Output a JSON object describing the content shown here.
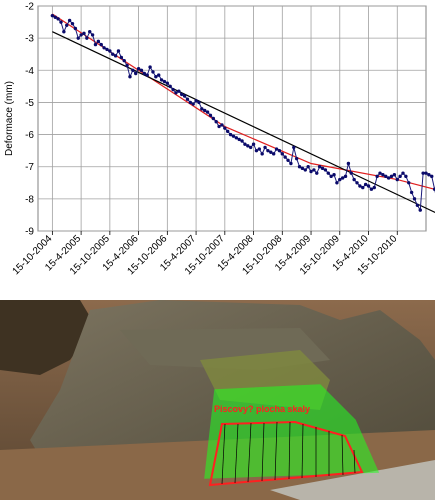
{
  "chart_data": {
    "type": "line",
    "title": "",
    "ylabel": "Deformace (mm)",
    "xlabel": "",
    "ylim": [
      -9,
      -2
    ],
    "y_ticks": [
      -2,
      -3,
      -4,
      -5,
      -6,
      -7,
      -8,
      -9
    ],
    "x_ticks": [
      "15-10-2004",
      "15-4-2005",
      "15-10-2005",
      "15-4-2006",
      "15-10-2006",
      "15-4-2007",
      "15-10-2007",
      "15-4-2008",
      "15-10-2008",
      "15-4-2009",
      "15-10-2009",
      "15-4-2010",
      "15-10-2010"
    ],
    "grid": true,
    "legend": "none",
    "series": [
      {
        "x": [
          0,
          0.1,
          0.2,
          0.3,
          0.4,
          0.5,
          0.6,
          0.7,
          0.8,
          0.9,
          1.0,
          1.1,
          1.2,
          1.3,
          1.4,
          1.5,
          1.6,
          1.7,
          1.8,
          1.9,
          2.0,
          2.1,
          2.2,
          2.3,
          2.4,
          2.5,
          2.6,
          2.7,
          2.8,
          2.9,
          3.0,
          3.1,
          3.2,
          3.3,
          3.4,
          3.5,
          3.6,
          3.7,
          3.8,
          3.9,
          4.0,
          4.1,
          4.2,
          4.3,
          4.4,
          4.5,
          4.6,
          4.7,
          4.8,
          4.9,
          5.0,
          5.1,
          5.2,
          5.3,
          5.4,
          5.5,
          5.6,
          5.7,
          5.8,
          5.9,
          6.0,
          6.1,
          6.2,
          6.3,
          6.4,
          6.5,
          6.6,
          6.7,
          6.8,
          6.9,
          7.0,
          7.1,
          7.2,
          7.3,
          7.4,
          7.5,
          7.6,
          7.7,
          7.8,
          7.9,
          8.0,
          8.1,
          8.2,
          8.3,
          8.4,
          8.5,
          8.6,
          8.7,
          8.8,
          8.9,
          9.0,
          9.1,
          9.2,
          9.3,
          9.4,
          9.5,
          9.6,
          9.7,
          9.8,
          9.9,
          10.0,
          10.1,
          10.2,
          10.3,
          10.4,
          10.5,
          10.6,
          10.7,
          10.8,
          10.9,
          11.0,
          11.1,
          11.2,
          11.3,
          11.4,
          11.5,
          11.6,
          11.7,
          11.8,
          11.9,
          12.0,
          12.1,
          12.2,
          12.3,
          12.4,
          12.5,
          12.6,
          12.7,
          12.8,
          12.9,
          13.0,
          13.1,
          13.2,
          13.3,
          13.4,
          13.5
        ],
        "y": [
          -2.3,
          -2.35,
          -2.4,
          -2.5,
          -2.8,
          -2.6,
          -2.45,
          -2.55,
          -2.7,
          -3.0,
          -2.9,
          -2.85,
          -3.0,
          -2.8,
          -2.9,
          -3.2,
          -3.1,
          -3.2,
          -3.3,
          -3.35,
          -3.4,
          -3.5,
          -3.55,
          -3.4,
          -3.6,
          -3.7,
          -3.85,
          -4.2,
          -4.0,
          -4.1,
          -3.95,
          -4.0,
          -4.1,
          -4.15,
          -3.9,
          -4.05,
          -4.2,
          -4.15,
          -4.3,
          -4.35,
          -4.4,
          -4.5,
          -4.6,
          -4.7,
          -4.65,
          -4.75,
          -4.8,
          -4.9,
          -5.0,
          -5.05,
          -4.95,
          -5.0,
          -5.2,
          -5.25,
          -5.3,
          -5.4,
          -5.5,
          -5.6,
          -5.75,
          -5.7,
          -5.8,
          -5.9,
          -6.0,
          -6.05,
          -6.1,
          -6.15,
          -6.2,
          -6.3,
          -6.35,
          -6.4,
          -6.3,
          -6.5,
          -6.45,
          -6.6,
          -6.4,
          -6.5,
          -6.55,
          -6.6,
          -6.45,
          -6.5,
          -6.6,
          -6.7,
          -6.8,
          -6.9,
          -6.4,
          -6.75,
          -7.0,
          -7.05,
          -7.1,
          -7.0,
          -7.15,
          -7.1,
          -7.2,
          -7.0,
          -7.05,
          -7.1,
          -7.2,
          -7.3,
          -7.25,
          -7.5,
          -7.4,
          -7.35,
          -7.3,
          -6.9,
          -7.2,
          -7.4,
          -7.5,
          -7.6,
          -7.65,
          -7.55,
          -7.6,
          -7.7,
          -7.65,
          -7.3,
          -7.2,
          -7.25,
          -7.3,
          -7.35,
          -7.3,
          -7.25,
          -7.4,
          -7.3,
          -7.2,
          -7.3,
          -7.5,
          -7.8,
          -8.0,
          -8.2,
          -8.35,
          -7.2,
          -7.2,
          -7.25,
          -7.3,
          -7.7,
          -8.1,
          -8.35
        ]
      }
    ],
    "trend_lines": [
      {
        "color": "#e02020",
        "x": [
          0,
          3,
          6,
          9,
          12,
          13.5
        ],
        "y": [
          -2.25,
          -4.0,
          -5.75,
          -6.9,
          -7.4,
          -7.75
        ]
      },
      {
        "color": "#000000",
        "x": [
          0,
          13.5
        ],
        "y": [
          -2.8,
          -8.5
        ]
      }
    ]
  },
  "photo": {
    "label": "Piscovy? plocha skaly",
    "colors": {
      "outline": "#ff2020",
      "overlay": "#20ff20"
    }
  }
}
